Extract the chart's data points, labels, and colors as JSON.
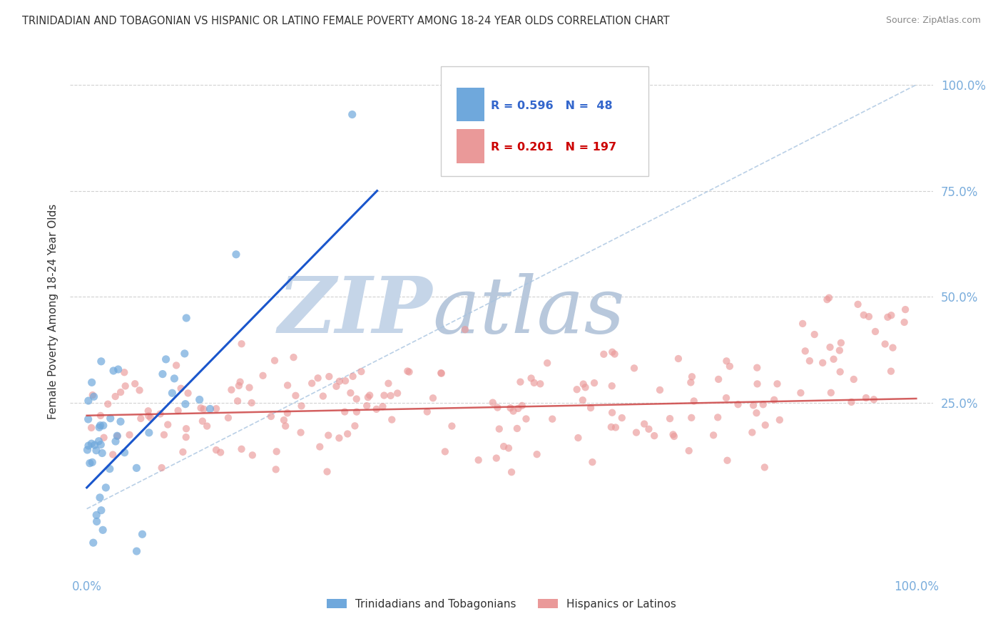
{
  "title": "TRINIDADIAN AND TOBAGONIAN VS HISPANIC OR LATINO FEMALE POVERTY AMONG 18-24 YEAR OLDS CORRELATION CHART",
  "source": "Source: ZipAtlas.com",
  "ylabel": "Female Poverty Among 18-24 Year Olds",
  "legend_labels": [
    "Trinidadians and Tobagonians",
    "Hispanics or Latinos"
  ],
  "r_blue": 0.596,
  "n_blue": 48,
  "r_pink": 0.201,
  "n_pink": 197,
  "blue_color": "#6fa8dc",
  "pink_color": "#ea9999",
  "blue_line_color": "#1a56cc",
  "pink_line_color": "#cc4444",
  "ref_line_color": "#a8c4e0",
  "watermark_zip": "ZIP",
  "watermark_atlas": "atlas",
  "watermark_color": "#ccd9eb",
  "background_color": "#ffffff",
  "grid_color": "#cccccc",
  "axis_color": "#7aaddc",
  "title_color": "#333333",
  "legend_r_blue_color": "#3366cc",
  "legend_r_pink_color": "#cc0000"
}
